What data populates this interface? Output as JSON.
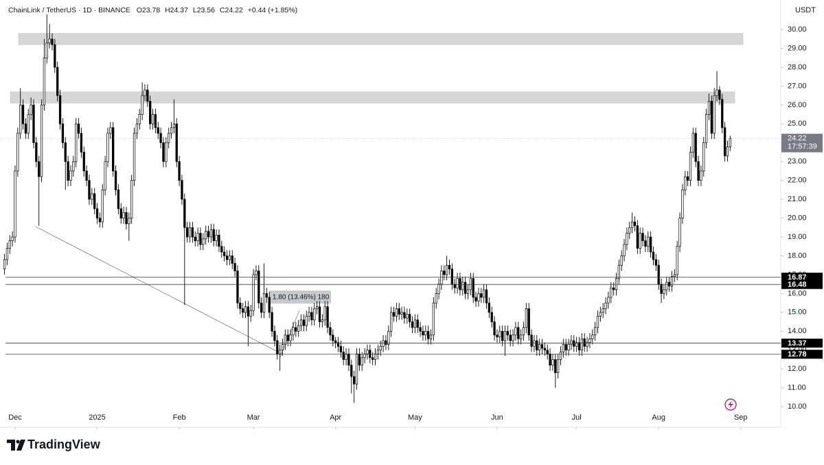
{
  "chart_data": {
    "type": "candlestick",
    "symbol": "ChainLink / TetherUS · 1D · BINANCE",
    "ohlc_text": [
      "O23.78",
      "H24.37",
      "L23.56",
      "C24.22",
      "+0.44 (+1.85%)"
    ],
    "currency": "USDT",
    "brand": "TradingView",
    "measure_label": "1.80 (13.46%) 180",
    "last_price": 24.22,
    "countdown": "17:57:39",
    "levels": [
      16.87,
      16.48,
      13.37,
      12.78
    ],
    "zones": [
      [
        29.2,
        29.8
      ],
      [
        26.1,
        26.7
      ]
    ],
    "xlim": [
      -1.7,
      293.1
    ],
    "ylim": [
      8.91,
      31.57
    ],
    "xticks": [
      {
        "value": 4,
        "label": "Dec"
      },
      {
        "value": 35,
        "label": "2025"
      },
      {
        "value": 66,
        "label": "Feb"
      },
      {
        "value": 94,
        "label": "Mar"
      },
      {
        "value": 125,
        "label": "Apr"
      },
      {
        "value": 155,
        "label": "May"
      },
      {
        "value": 186,
        "label": "Jun"
      },
      {
        "value": 216,
        "label": "Jul"
      },
      {
        "value": 247,
        "label": "Aug"
      },
      {
        "value": 278,
        "label": "Sep"
      }
    ],
    "yticks": [
      {
        "value": 10,
        "label": "10.00"
      },
      {
        "value": 11,
        "label": "11.00"
      },
      {
        "value": 12,
        "label": "12.00"
      },
      {
        "value": 13,
        "label": "13.00"
      },
      {
        "value": 14,
        "label": "14.00"
      },
      {
        "value": 15,
        "label": "15.00"
      },
      {
        "value": 16,
        "label": "16.00"
      },
      {
        "value": 17,
        "label": "17.00"
      },
      {
        "value": 18,
        "label": "18.00"
      },
      {
        "value": 19,
        "label": "19.00"
      },
      {
        "value": 20,
        "label": "20.00"
      },
      {
        "value": 21,
        "label": "21.00"
      },
      {
        "value": 22,
        "label": "22.00"
      },
      {
        "value": 23,
        "label": "23.00"
      },
      {
        "value": 24,
        "label": "24.00"
      },
      {
        "value": 25,
        "label": "25.00"
      },
      {
        "value": 26,
        "label": "26.00"
      },
      {
        "value": 27,
        "label": "27.00"
      },
      {
        "value": 28,
        "label": "28.00"
      },
      {
        "value": 29,
        "label": "29.00"
      },
      {
        "value": 30,
        "label": "30.00"
      }
    ],
    "up_color": "#ffffff",
    "down_color": "#000000",
    "wick_color": "#000000",
    "open": [
      17.3,
      17.8,
      18.4,
      18.8,
      19.0,
      22.5,
      24.5,
      26.0,
      25.0,
      24.5,
      25.5,
      26.0,
      24.0,
      23.0,
      22.2,
      26.0,
      28.5,
      29.3,
      29.5,
      29.2,
      28.0,
      26.5,
      25.0,
      24.0,
      23.0,
      22.0,
      22.5,
      23.0,
      25.0,
      24.5,
      23.5,
      22.5,
      22.0,
      21.0,
      21.3,
      20.5,
      20.0,
      19.8,
      21.5,
      23.0,
      24.5,
      24.8,
      22.5,
      21.5,
      20.5,
      20.0,
      20.3,
      19.7,
      20.0,
      22.0,
      24.5,
      25.0,
      25.5,
      26.5,
      26.8,
      26.2,
      25.0,
      25.5,
      24.8,
      24.5,
      24.0,
      23.0,
      24.0,
      24.5,
      24.8,
      25.0,
      23.0,
      22.0,
      21.0,
      19.5,
      19.0,
      19.5,
      19.0,
      18.8,
      19.2,
      18.6,
      18.9,
      19.3,
      19.0,
      19.4,
      18.8,
      19.1,
      18.5,
      18.2,
      18.0,
      17.8,
      18.0,
      17.6,
      17.2,
      15.5,
      15.2,
      15.0,
      15.3,
      14.8,
      15.1,
      17.0,
      17.2,
      15.5,
      15.0,
      16.0,
      15.8,
      15.0,
      14.0,
      13.5,
      12.8,
      13.0,
      13.3,
      13.8,
      13.5,
      13.8,
      14.2,
      14.0,
      14.3,
      14.6,
      14.3,
      14.8,
      15.0,
      14.6,
      15.2,
      15.3,
      14.5,
      14.6,
      15.3,
      14.2,
      13.8,
      13.5,
      13.4,
      13.2,
      12.9,
      12.5,
      12.8,
      12.2,
      11.6,
      11.2,
      12.8,
      12.2,
      12.6,
      12.8,
      13.0,
      12.6,
      12.5,
      12.8,
      13.0,
      13.2,
      13.5,
      13.3,
      14.0,
      15.0,
      14.8,
      15.2,
      14.9,
      15.0,
      14.7,
      14.9,
      14.5,
      14.2,
      14.6,
      14.2,
      14.0,
      13.8,
      14.0,
      13.6,
      13.8,
      15.5,
      16.0,
      16.5,
      17.2,
      17.0,
      17.5,
      17.3,
      16.5,
      16.3,
      16.8,
      16.2,
      16.6,
      16.0,
      16.2,
      16.8,
      15.8,
      15.6,
      16.0,
      15.8,
      16.2,
      15.5,
      15.0,
      14.5,
      13.8,
      13.7,
      14.0,
      13.5,
      14.0,
      13.8,
      13.5,
      13.8,
      14.2,
      13.6,
      13.8,
      14.2,
      15.2,
      13.8,
      13.2,
      13.5,
      13.0,
      13.3,
      13.1,
      13.0,
      12.8,
      12.2,
      12.5,
      11.8,
      12.5,
      12.9,
      13.3,
      13.0,
      13.3,
      13.5,
      13.2,
      13.4,
      13.0,
      13.6,
      13.2,
      13.4,
      13.6,
      13.8,
      14.2,
      14.8,
      15.0,
      15.2,
      15.5,
      15.8,
      16.3,
      16.2,
      16.8,
      17.5,
      18.0,
      18.6,
      19.2,
      19.5,
      19.8,
      19.6,
      18.4,
      19.2,
      18.8,
      18.5,
      19.0,
      18.2,
      17.8,
      17.5,
      16.5,
      16.0,
      16.2,
      16.6,
      16.4,
      16.9,
      17.0,
      18.5,
      20.0,
      21.5,
      22.2,
      22.0,
      23.5,
      24.5,
      23.0,
      22.0,
      22.5,
      24.0,
      25.5,
      26.2,
      24.5,
      26.5,
      26.8,
      26.3,
      24.8,
      23.3,
      23.78
    ],
    "high": [
      18.1,
      18.7,
      19.1,
      19.3,
      22.8,
      24.8,
      26.9,
      26.3,
      25.3,
      25.8,
      26.4,
      26.3,
      24.3,
      23.3,
      26.3,
      29.5,
      30.8,
      30.3,
      29.8,
      29.5,
      28.3,
      26.8,
      25.3,
      24.3,
      23.3,
      22.8,
      23.3,
      25.3,
      25.3,
      24.8,
      23.8,
      22.8,
      22.3,
      21.6,
      21.6,
      20.8,
      20.3,
      21.8,
      23.3,
      24.8,
      25.1,
      25.1,
      22.8,
      21.8,
      20.8,
      20.6,
      20.6,
      20.3,
      22.3,
      24.8,
      25.3,
      25.8,
      27.2,
      27.1,
      27.1,
      26.5,
      25.8,
      25.8,
      25.1,
      24.8,
      24.3,
      24.3,
      24.8,
      25.1,
      26.3,
      25.3,
      23.3,
      22.3,
      21.3,
      19.8,
      19.8,
      19.8,
      19.3,
      19.5,
      19.5,
      19.2,
      19.6,
      19.6,
      19.7,
      19.7,
      19.4,
      19.4,
      18.8,
      18.5,
      18.3,
      18.3,
      18.3,
      17.9,
      17.5,
      15.8,
      15.5,
      15.6,
      15.6,
      15.4,
      17.3,
      17.5,
      17.5,
      15.8,
      17.6,
      16.3,
      16.1,
      15.3,
      14.3,
      13.8,
      13.3,
      13.6,
      14.1,
      14.1,
      14.1,
      14.5,
      14.5,
      14.6,
      14.9,
      14.9,
      15.1,
      15.3,
      15.3,
      15.5,
      15.6,
      15.6,
      14.9,
      15.6,
      15.6,
      14.5,
      14.1,
      13.7,
      13.7,
      13.5,
      13.2,
      13.1,
      13.1,
      12.5,
      11.9,
      13.1,
      13.1,
      12.9,
      13.1,
      13.3,
      13.3,
      12.9,
      13.1,
      13.3,
      13.5,
      13.8,
      13.8,
      14.3,
      15.3,
      15.3,
      15.5,
      15.5,
      15.3,
      15.3,
      15.2,
      15.2,
      14.8,
      14.9,
      14.9,
      14.5,
      14.3,
      14.3,
      14.3,
      14.1,
      15.8,
      16.3,
      16.8,
      17.5,
      17.5,
      18.0,
      17.8,
      17.6,
      16.8,
      17.1,
      17.1,
      16.9,
      16.9,
      16.5,
      17.1,
      17.1,
      16.1,
      16.3,
      16.3,
      16.5,
      16.5,
      15.8,
      15.3,
      14.8,
      14.1,
      14.3,
      14.3,
      14.3,
      14.3,
      14.1,
      14.1,
      14.5,
      14.5,
      14.1,
      14.5,
      15.5,
      15.5,
      14.1,
      13.8,
      13.8,
      13.6,
      13.6,
      13.4,
      13.3,
      13.1,
      12.8,
      12.8,
      12.8,
      13.2,
      13.6,
      13.6,
      13.6,
      13.8,
      13.8,
      13.7,
      13.7,
      13.9,
      13.9,
      13.7,
      13.9,
      14.1,
      14.5,
      15.1,
      15.3,
      15.5,
      15.8,
      16.1,
      16.6,
      16.6,
      17.1,
      17.8,
      18.3,
      18.9,
      19.5,
      19.8,
      20.3,
      20.1,
      19.9,
      19.5,
      19.5,
      19.1,
      19.3,
      19.3,
      18.5,
      18.1,
      17.8,
      16.8,
      16.5,
      16.9,
      16.9,
      17.2,
      17.3,
      18.8,
      20.3,
      21.8,
      22.5,
      22.5,
      23.8,
      24.8,
      24.8,
      23.3,
      22.8,
      24.3,
      25.8,
      26.6,
      26.5,
      26.9,
      27.8,
      27.0,
      26.6,
      25.1,
      24.1,
      24.37
    ],
    "low": [
      17.0,
      17.5,
      18.1,
      18.5,
      18.7,
      22.2,
      24.2,
      24.7,
      24.2,
      24.2,
      25.2,
      23.7,
      22.7,
      19.6,
      21.9,
      25.7,
      28.2,
      29.0,
      28.9,
      27.7,
      26.2,
      24.7,
      23.7,
      21.5,
      21.7,
      21.7,
      22.2,
      22.7,
      24.2,
      23.2,
      22.2,
      21.7,
      20.7,
      20.7,
      20.2,
      19.7,
      19.5,
      19.5,
      21.2,
      22.7,
      24.2,
      22.2,
      21.2,
      20.2,
      19.7,
      19.7,
      19.4,
      18.8,
      19.7,
      21.7,
      24.2,
      24.7,
      25.2,
      26.2,
      25.9,
      24.7,
      24.7,
      24.5,
      24.2,
      23.7,
      22.7,
      22.7,
      23.7,
      24.2,
      24.5,
      22.7,
      21.7,
      20.7,
      15.4,
      18.7,
      18.7,
      18.7,
      18.5,
      18.5,
      18.3,
      18.3,
      18.6,
      18.7,
      18.7,
      18.5,
      18.5,
      18.2,
      17.9,
      17.7,
      17.5,
      17.5,
      17.3,
      16.9,
      15.2,
      14.9,
      14.7,
      14.7,
      13.2,
      14.5,
      14.8,
      16.7,
      15.2,
      14.7,
      14.7,
      15.5,
      14.7,
      13.7,
      13.2,
      12.5,
      11.9,
      12.7,
      13.0,
      13.2,
      13.2,
      13.5,
      13.7,
      13.7,
      14.0,
      14.0,
      14.0,
      14.5,
      14.3,
      14.3,
      14.9,
      14.2,
      14.2,
      14.3,
      13.9,
      13.5,
      13.2,
      13.1,
      12.9,
      12.6,
      12.2,
      12.2,
      11.9,
      10.7,
      10.2,
      10.9,
      11.9,
      11.9,
      12.3,
      12.5,
      12.3,
      12.2,
      12.2,
      12.5,
      12.7,
      12.9,
      13.0,
      13.0,
      13.7,
      14.5,
      14.5,
      14.6,
      14.6,
      14.4,
      14.4,
      14.2,
      13.9,
      13.9,
      13.9,
      13.7,
      13.5,
      13.5,
      13.3,
      13.3,
      13.5,
      15.2,
      15.7,
      16.2,
      16.7,
      16.7,
      17.0,
      16.2,
      16.0,
      16.0,
      15.9,
      15.9,
      15.7,
      15.7,
      15.9,
      15.5,
      15.3,
      15.3,
      15.5,
      15.5,
      15.2,
      14.7,
      14.2,
      13.5,
      13.4,
      13.4,
      13.2,
      12.7,
      13.5,
      13.2,
      13.2,
      13.5,
      13.3,
      13.3,
      13.5,
      13.9,
      13.5,
      12.9,
      12.9,
      12.7,
      12.7,
      12.8,
      12.7,
      12.5,
      11.9,
      11.9,
      11.0,
      11.5,
      12.2,
      12.6,
      12.7,
      12.7,
      13.0,
      12.9,
      12.9,
      12.7,
      12.7,
      12.9,
      12.9,
      13.1,
      13.3,
      13.5,
      13.9,
      14.5,
      14.7,
      14.9,
      15.2,
      15.5,
      15.9,
      15.9,
      16.5,
      17.2,
      17.7,
      18.3,
      18.9,
      19.2,
      19.3,
      18.1,
      18.1,
      18.5,
      18.2,
      18.2,
      17.9,
      17.5,
      17.2,
      16.2,
      15.5,
      15.7,
      15.9,
      16.1,
      16.1,
      16.6,
      16.7,
      18.2,
      19.7,
      21.2,
      21.7,
      21.7,
      23.2,
      22.7,
      21.7,
      21.7,
      22.2,
      23.7,
      25.2,
      24.2,
      24.2,
      26.2,
      26.0,
      24.5,
      23.0,
      23.0,
      23.56
    ],
    "close": [
      17.8,
      18.4,
      18.8,
      19.0,
      22.5,
      24.5,
      26.0,
      25.0,
      24.5,
      25.5,
      26.0,
      24.0,
      23.0,
      22.2,
      26.0,
      28.5,
      29.3,
      29.5,
      29.2,
      28.0,
      26.5,
      25.0,
      24.0,
      23.0,
      22.0,
      22.5,
      23.0,
      25.0,
      24.5,
      23.5,
      22.5,
      22.0,
      21.0,
      21.3,
      20.5,
      20.0,
      19.8,
      21.5,
      23.0,
      24.5,
      24.8,
      22.5,
      21.5,
      20.5,
      20.0,
      20.3,
      19.7,
      20.0,
      22.0,
      24.5,
      25.0,
      25.5,
      26.5,
      26.8,
      26.2,
      25.0,
      25.5,
      24.8,
      24.5,
      24.0,
      23.0,
      24.0,
      24.5,
      24.8,
      25.0,
      23.0,
      22.0,
      21.0,
      19.5,
      19.0,
      19.5,
      19.0,
      18.8,
      19.2,
      18.6,
      18.9,
      19.3,
      19.0,
      19.4,
      18.8,
      19.1,
      18.5,
      18.2,
      18.0,
      17.8,
      18.0,
      17.6,
      17.2,
      15.5,
      15.2,
      15.0,
      15.3,
      14.8,
      15.1,
      17.0,
      17.2,
      15.5,
      15.0,
      16.0,
      15.8,
      15.0,
      14.0,
      13.5,
      12.8,
      13.0,
      13.3,
      13.8,
      13.5,
      13.8,
      14.2,
      14.0,
      14.3,
      14.6,
      14.3,
      14.8,
      15.0,
      14.6,
      15.2,
      15.3,
      14.5,
      14.6,
      15.3,
      14.2,
      13.8,
      13.5,
      13.4,
      13.2,
      12.9,
      12.5,
      12.8,
      12.2,
      11.6,
      11.2,
      12.8,
      12.2,
      12.6,
      12.8,
      13.0,
      12.6,
      12.5,
      12.8,
      13.0,
      13.2,
      13.5,
      13.3,
      14.0,
      15.0,
      14.8,
      15.2,
      14.9,
      15.0,
      14.7,
      14.9,
      14.5,
      14.2,
      14.6,
      14.2,
      14.0,
      13.8,
      14.0,
      13.6,
      13.8,
      15.5,
      16.0,
      16.5,
      17.2,
      17.0,
      17.5,
      17.3,
      16.5,
      16.3,
      16.8,
      16.2,
      16.6,
      16.0,
      16.2,
      16.8,
      15.8,
      15.6,
      16.0,
      15.8,
      16.2,
      15.5,
      15.0,
      14.5,
      13.8,
      13.7,
      14.0,
      13.5,
      14.0,
      13.8,
      13.5,
      13.8,
      14.2,
      13.6,
      13.8,
      14.2,
      15.2,
      13.8,
      13.2,
      13.5,
      13.0,
      13.3,
      13.1,
      13.0,
      12.8,
      12.2,
      12.5,
      11.8,
      12.5,
      12.9,
      13.3,
      13.0,
      13.3,
      13.5,
      13.2,
      13.4,
      13.0,
      13.6,
      13.2,
      13.4,
      13.6,
      13.8,
      14.2,
      14.8,
      15.0,
      15.2,
      15.5,
      15.8,
      16.3,
      16.2,
      16.8,
      17.5,
      18.0,
      18.6,
      19.2,
      19.5,
      19.8,
      19.6,
      18.4,
      19.2,
      18.8,
      18.5,
      19.0,
      18.2,
      17.8,
      17.5,
      16.5,
      16.0,
      16.2,
      16.6,
      16.4,
      16.9,
      17.0,
      18.5,
      20.0,
      21.5,
      22.2,
      22.0,
      23.5,
      24.5,
      23.0,
      22.0,
      22.5,
      24.0,
      25.5,
      26.2,
      24.5,
      26.5,
      26.8,
      26.3,
      24.8,
      23.3,
      23.78,
      24.22
    ]
  }
}
